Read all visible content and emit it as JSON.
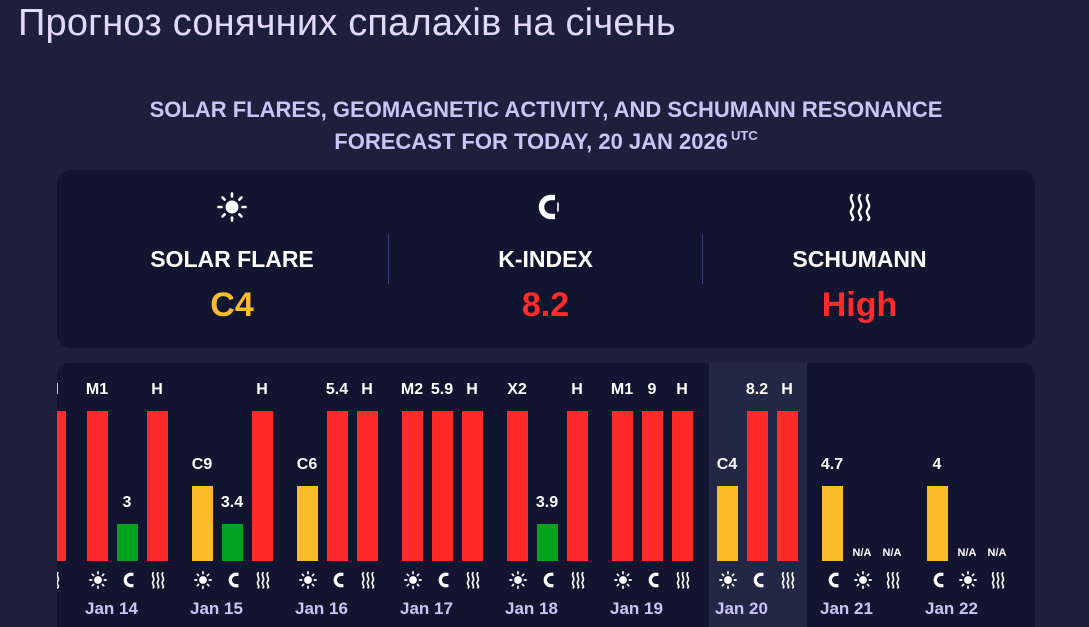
{
  "page": {
    "title": "Прогноз сонячних спалахів на січень",
    "subtitle_line1": "SOLAR FLARES, GEOMAGNETIC ACTIVITY, AND SCHUMANN RESONANCE",
    "subtitle_line2": "FORECAST FOR TODAY, 20 JAN 2026",
    "subtitle_sup": "UTC"
  },
  "colors": {
    "background": "#1d1f3c",
    "panel": "#121530",
    "today_highlight": "#222746",
    "high_red": "#ff2b2b",
    "medium_yellow": "#fbbc2a",
    "low_green": "#00a21e"
  },
  "summary": {
    "solar": {
      "icon": "sun-icon",
      "label": "SOLAR FLARE",
      "value": "C4",
      "color": "#fbbc2a"
    },
    "kindex": {
      "icon": "magnet-icon",
      "label": "K-INDEX",
      "value": "8.2",
      "color": "#ff2b2b"
    },
    "schumann": {
      "icon": "waves-icon",
      "label": "SCHUMANN",
      "value": "High",
      "color": "#ff2b2b"
    }
  },
  "chart_data": {
    "type": "bar",
    "series_order": [
      "solar",
      "kindex",
      "schumann"
    ],
    "level": {
      "high": 1.0,
      "medium": 0.5,
      "low": 0.25
    },
    "days": [
      {
        "date": "",
        "partial": true,
        "bars": [
          {
            "kind": "schumann",
            "level": "high",
            "label": "H"
          }
        ]
      },
      {
        "date": "Jan 14",
        "bars": [
          {
            "kind": "solar",
            "level": "high",
            "label": "M1"
          },
          {
            "kind": "kindex",
            "level": "low",
            "label": "3"
          },
          {
            "kind": "schumann",
            "level": "high",
            "label": "H"
          }
        ]
      },
      {
        "date": "Jan 15",
        "bars": [
          {
            "kind": "solar",
            "level": "medium",
            "label": "C9"
          },
          {
            "kind": "kindex",
            "level": "low",
            "label": "3.4"
          },
          {
            "kind": "schumann",
            "level": "high",
            "label": "H"
          }
        ]
      },
      {
        "date": "Jan 16",
        "bars": [
          {
            "kind": "solar",
            "level": "medium",
            "label": "C6"
          },
          {
            "kind": "kindex",
            "level": "high",
            "label": "5.4"
          },
          {
            "kind": "schumann",
            "level": "high",
            "label": "H"
          }
        ]
      },
      {
        "date": "Jan 17",
        "bars": [
          {
            "kind": "solar",
            "level": "high",
            "label": "M2"
          },
          {
            "kind": "kindex",
            "level": "high",
            "label": "5.9"
          },
          {
            "kind": "schumann",
            "level": "high",
            "label": "H"
          }
        ]
      },
      {
        "date": "Jan 18",
        "bars": [
          {
            "kind": "solar",
            "level": "high",
            "label": "X2"
          },
          {
            "kind": "kindex",
            "level": "low",
            "label": "3.9"
          },
          {
            "kind": "schumann",
            "level": "high",
            "label": "H"
          }
        ]
      },
      {
        "date": "Jan 19",
        "bars": [
          {
            "kind": "solar",
            "level": "high",
            "label": "M1"
          },
          {
            "kind": "kindex",
            "level": "high",
            "label": "9"
          },
          {
            "kind": "schumann",
            "level": "high",
            "label": "H"
          }
        ]
      },
      {
        "date": "Jan 20",
        "today": true,
        "bars": [
          {
            "kind": "solar",
            "level": "medium",
            "label": "C4"
          },
          {
            "kind": "kindex",
            "level": "high",
            "label": "8.2"
          },
          {
            "kind": "schumann",
            "level": "high",
            "label": "H"
          }
        ]
      },
      {
        "date": "Jan 21",
        "icon_order": [
          "kindex",
          "solar",
          "schumann"
        ],
        "bars": [
          {
            "kind": "kindex",
            "level": "medium",
            "label": "4.7"
          },
          {
            "kind": "solar",
            "level": "none",
            "label": "N/A"
          },
          {
            "kind": "schumann",
            "level": "none",
            "label": "N/A"
          }
        ]
      },
      {
        "date": "Jan 22",
        "icon_order": [
          "kindex",
          "solar",
          "schumann"
        ],
        "bars": [
          {
            "kind": "kindex",
            "level": "medium",
            "label": "4"
          },
          {
            "kind": "solar",
            "level": "none",
            "label": "N/A"
          },
          {
            "kind": "schumann",
            "level": "none",
            "label": "N/A"
          }
        ]
      }
    ]
  }
}
